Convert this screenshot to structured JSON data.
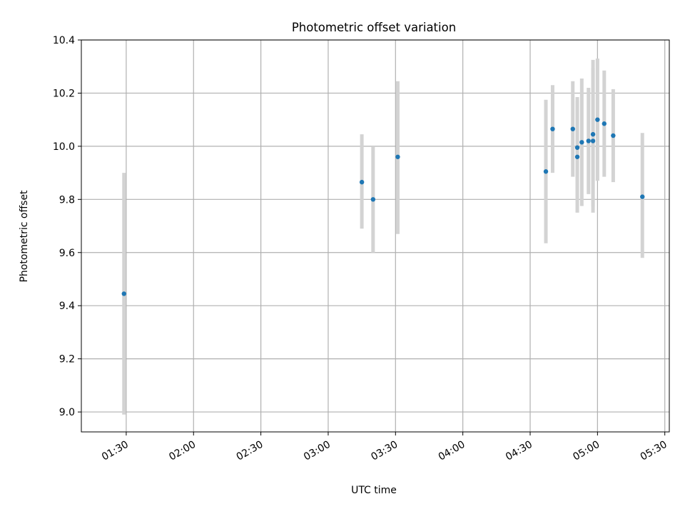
{
  "chart_data": {
    "type": "scatter",
    "title": "Photometric offset variation",
    "xlabel": "UTC time",
    "ylabel": "Photometric offset",
    "xlim": [
      "01:10",
      "05:32"
    ],
    "ylim": [
      8.925,
      10.4
    ],
    "x_ticks": [
      "01:30",
      "02:00",
      "02:30",
      "03:00",
      "03:30",
      "04:00",
      "04:30",
      "05:00",
      "05:30"
    ],
    "y_ticks": [
      "9.0",
      "9.2",
      "9.4",
      "9.6",
      "9.8",
      "10.0",
      "10.2",
      "10.4"
    ],
    "grid": true,
    "colors": {
      "point": "#1f77b4",
      "errorbar": "#d3d3d3",
      "grid": "#b0b0b0",
      "axes": "#000000"
    },
    "points": [
      {
        "x": "01:29",
        "y": 9.445,
        "ylow": 8.99,
        "yhigh": 9.9
      },
      {
        "x": "03:15",
        "y": 9.865,
        "ylow": 9.69,
        "yhigh": 10.045
      },
      {
        "x": "03:20",
        "y": 9.8,
        "ylow": 9.6,
        "yhigh": 10.0
      },
      {
        "x": "03:31",
        "y": 9.96,
        "ylow": 9.67,
        "yhigh": 10.245
      },
      {
        "x": "04:37",
        "y": 9.905,
        "ylow": 9.635,
        "yhigh": 10.175
      },
      {
        "x": "04:40",
        "y": 10.065,
        "ylow": 9.9,
        "yhigh": 10.23
      },
      {
        "x": "04:49",
        "y": 10.065,
        "ylow": 9.885,
        "yhigh": 10.245
      },
      {
        "x": "04:51",
        "y": 9.995,
        "ylow": 9.805,
        "yhigh": 10.185
      },
      {
        "x": "04:51",
        "y": 9.96,
        "ylow": 9.75,
        "yhigh": 10.17
      },
      {
        "x": "04:53",
        "y": 10.015,
        "ylow": 9.775,
        "yhigh": 10.255
      },
      {
        "x": "04:56",
        "y": 10.02,
        "ylow": 9.82,
        "yhigh": 10.22
      },
      {
        "x": "04:58",
        "y": 10.045,
        "ylow": 9.775,
        "yhigh": 10.325
      },
      {
        "x": "04:58",
        "y": 10.02,
        "ylow": 9.75,
        "yhigh": 10.295
      },
      {
        "x": "05:00",
        "y": 10.1,
        "ylow": 9.87,
        "yhigh": 10.33
      },
      {
        "x": "05:03",
        "y": 10.085,
        "ylow": 9.885,
        "yhigh": 10.285
      },
      {
        "x": "05:07",
        "y": 10.04,
        "ylow": 9.865,
        "yhigh": 10.215
      },
      {
        "x": "05:20",
        "y": 9.81,
        "ylow": 9.58,
        "yhigh": 10.05
      }
    ]
  }
}
